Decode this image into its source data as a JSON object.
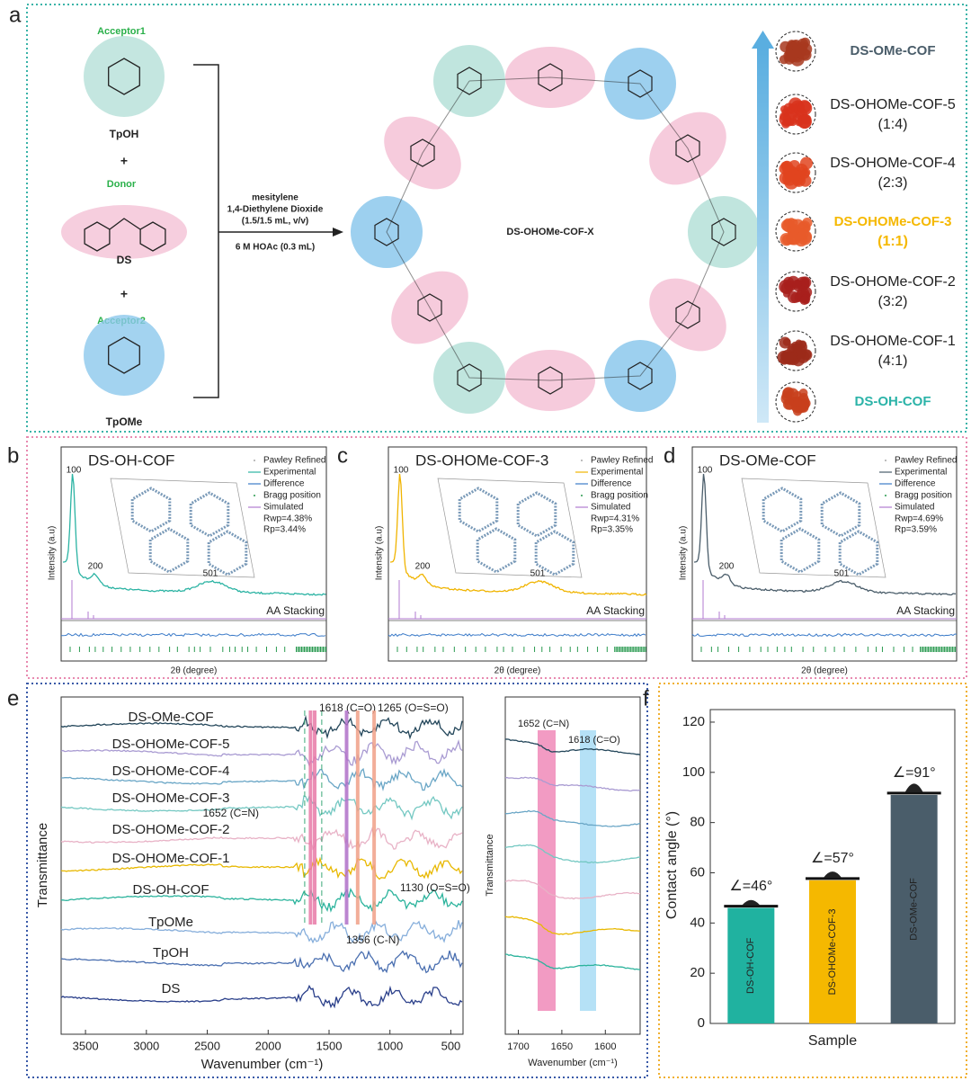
{
  "panel_labels": [
    "a",
    "b",
    "c",
    "d",
    "e",
    "f"
  ],
  "panel_a": {
    "monomers": [
      {
        "role": "Acceptor1",
        "name": "TpOH"
      },
      {
        "role": "Donor",
        "name": "DS"
      },
      {
        "role": "Acceptor2",
        "name": "TpOMe"
      }
    ],
    "plus": "+",
    "conditions": [
      "mesitylene",
      "1,4-Diethylene Dioxide",
      "(1.5/1.5 mL, v/v)",
      "6 M HOAc (0.3 mL)"
    ],
    "product": "DS-OHOMe-COF-X",
    "samples": [
      {
        "name": "DS-OMe-COF",
        "color": "#4a5d6a",
        "bold": true,
        "swatch": "#a8381f"
      },
      {
        "name": "DS-OHOMe-COF-5",
        "ratio": "(1:4)",
        "swatch": "#d8331c"
      },
      {
        "name": "DS-OHOMe-COF-4",
        "ratio": "(2:3)",
        "swatch": "#e0441e"
      },
      {
        "name": "DS-OHOMe-COF-3",
        "ratio": "(1:1)",
        "color": "#f5b800",
        "bold": true,
        "swatch": "#e85a2a"
      },
      {
        "name": "DS-OHOMe-COF-2",
        "ratio": "(3:2)",
        "swatch": "#a8201c"
      },
      {
        "name": "DS-OHOMe-COF-1",
        "ratio": "(4:1)",
        "swatch": "#9c2a1a"
      },
      {
        "name": "DS-OH-COF",
        "color": "#2bb3a8",
        "bold": true,
        "swatch": "#c8401c"
      }
    ]
  },
  "xrd": [
    {
      "title": "DS-OH-COF",
      "color": "#2bb3a3",
      "legend": [
        "Pawley Refined",
        "Experimental",
        "Difference",
        "Bragg position",
        "Simulated"
      ],
      "rwp": "Rwp=4.38%",
      "rp": "Rp=3.44%",
      "peaks": [
        "100",
        "200",
        "501"
      ],
      "stacking": "AA Stacking",
      "ylabel": "Intensity (a.u)",
      "xlabel": "2θ (degree)"
    },
    {
      "title": "DS-OHOMe-COF-3",
      "color": "#f0b400",
      "legend": [
        "Pawley Refined",
        "Experimental",
        "Difference",
        "Bragg position",
        "Simulated"
      ],
      "rwp": "Rwp=4.31%",
      "rp": "Rp=3.35%",
      "peaks": [
        "100",
        "200",
        "501"
      ],
      "stacking": "AA Stacking",
      "ylabel": "Intensity (a.u)",
      "xlabel": "2θ (degree)"
    },
    {
      "title": "DS-OMe-COF",
      "color": "#4a5d6a",
      "legend": [
        "Pawley Refined",
        "Experimental",
        "Difference",
        "Bragg position",
        "Simulated"
      ],
      "rwp": "Rwp=4.69%",
      "rp": "Rp=3.59%",
      "peaks": [
        "100",
        "200",
        "501"
      ],
      "stacking": "AA Stacking",
      "ylabel": "Intensity (a.u)",
      "xlabel": "2θ (degree)"
    }
  ],
  "panel_e": {
    "samples": [
      {
        "name": "DS-OMe-COF",
        "color": "#23465a"
      },
      {
        "name": "DS-OHOMe-COF-5",
        "color": "#a99bd2"
      },
      {
        "name": "DS-OHOMe-COF-4",
        "color": "#6aa6c6"
      },
      {
        "name": "DS-OHOMe-COF-3",
        "color": "#74c8c2"
      },
      {
        "name": "DS-OHOMe-COF-2",
        "color": "#e8b2c6"
      },
      {
        "name": "DS-OHOMe-COF-1",
        "color": "#e8b800"
      },
      {
        "name": "DS-OH-COF",
        "color": "#2bb39c"
      },
      {
        "name": "TpOMe",
        "color": "#86aedb"
      },
      {
        "name": "TpOH",
        "color": "#4a6fb0"
      },
      {
        "name": "DS",
        "color": "#2a3f8a"
      }
    ],
    "xlim": [
      3700,
      400
    ],
    "xticks": [
      3500,
      3000,
      2500,
      2000,
      1500,
      1000,
      500
    ],
    "xlabel": "Wavenumber (cm⁻¹)",
    "ylabel": "Transmittance",
    "bands": [
      {
        "value": 1618,
        "label": "1618 (C=O)",
        "color": "#e87aa8"
      },
      {
        "value": 1265,
        "label": "1265 (O=S=O)",
        "color": "#f0a088"
      },
      {
        "value": 1652,
        "label": "1652 (C=N)",
        "color": "#e87aa8"
      },
      {
        "value": 1130,
        "label": "1130 (O=S=O)",
        "color": "#f0a088"
      },
      {
        "value": 1356,
        "label": "1356 (C-N)",
        "color": "#b070c8"
      }
    ],
    "zoom": {
      "xlim": [
        1715,
        1560
      ],
      "xticks": [
        1700,
        1650,
        1600
      ],
      "annotations": [
        "1652 (C=N)",
        "1618 (C=O)"
      ],
      "xlabel": "Wavenumber (cm⁻¹)",
      "ylabel": "Transmittance"
    }
  },
  "chart_data": {
    "type": "bar",
    "categories": [
      "DS-OH-COF",
      "DS-OHOMe-COF-3",
      "DS-OMe-COF"
    ],
    "values": [
      46,
      57,
      91
    ],
    "value_labels": [
      "∠=46°",
      "∠=57°",
      "∠=91°"
    ],
    "colors": [
      "#20b2a0",
      "#f5b800",
      "#4a5d6a"
    ],
    "ylim": [
      0,
      125
    ],
    "yticks": [
      0,
      20,
      40,
      60,
      80,
      100,
      120
    ],
    "ylabel": "Contact angle (°)",
    "xlabel": "Sample"
  }
}
